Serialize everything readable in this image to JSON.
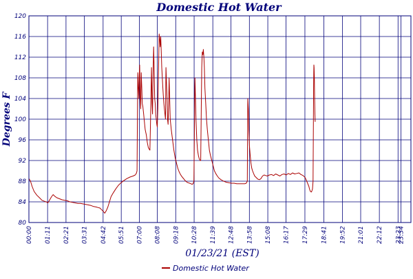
{
  "chart_data": {
    "type": "line",
    "title": "Domestic Hot Water",
    "xlabel": "01/23/21 (EST)",
    "ylabel": "Degrees F",
    "ylim": [
      80,
      120
    ],
    "yticks": [
      80,
      84,
      88,
      92,
      96,
      100,
      104,
      108,
      112,
      116,
      120
    ],
    "xlim": [
      0,
      1452
    ],
    "xticks": [
      {
        "label": "00:00",
        "minute": 0
      },
      {
        "label": "01:11",
        "minute": 71
      },
      {
        "label": "02:21",
        "minute": 141
      },
      {
        "label": "03:31",
        "minute": 211
      },
      {
        "label": "04:42",
        "minute": 282
      },
      {
        "label": "05:51",
        "minute": 351
      },
      {
        "label": "07:00",
        "minute": 420
      },
      {
        "label": "08:08",
        "minute": 488
      },
      {
        "label": "09:18",
        "minute": 558
      },
      {
        "label": "10:28",
        "minute": 628
      },
      {
        "label": "11:39",
        "minute": 699
      },
      {
        "label": "12:48",
        "minute": 768
      },
      {
        "label": "13:58",
        "minute": 838
      },
      {
        "label": "15:08",
        "minute": 908
      },
      {
        "label": "16:17",
        "minute": 977
      },
      {
        "label": "17:29",
        "minute": 1049
      },
      {
        "label": "18:41",
        "minute": 1121
      },
      {
        "label": "19:52",
        "minute": 1192
      },
      {
        "label": "21:01",
        "minute": 1261
      },
      {
        "label": "22:12",
        "minute": 1332
      },
      {
        "label": "23:23",
        "minute": 1403
      },
      {
        "label": "23:34",
        "minute": 1414
      }
    ],
    "grid": true,
    "legend": "bottom-center",
    "series": [
      {
        "name": "Domestic Hot Water",
        "color": "#aa0000",
        "points": [
          [
            0,
            88.5
          ],
          [
            6,
            88
          ],
          [
            12,
            87
          ],
          [
            20,
            86
          ],
          [
            30,
            85.3
          ],
          [
            40,
            84.8
          ],
          [
            50,
            84.3
          ],
          [
            60,
            84.1
          ],
          [
            66,
            84
          ],
          [
            72,
            83.8
          ],
          [
            78,
            84.3
          ],
          [
            86,
            85
          ],
          [
            92,
            85.4
          ],
          [
            98,
            85.1
          ],
          [
            106,
            84.8
          ],
          [
            116,
            84.6
          ],
          [
            126,
            84.4
          ],
          [
            136,
            84.3
          ],
          [
            146,
            84.2
          ],
          [
            156,
            84
          ],
          [
            166,
            83.9
          ],
          [
            176,
            83.8
          ],
          [
            186,
            83.7
          ],
          [
            196,
            83.7
          ],
          [
            206,
            83.6
          ],
          [
            216,
            83.5
          ],
          [
            226,
            83.4
          ],
          [
            236,
            83.3
          ],
          [
            246,
            83.1
          ],
          [
            256,
            83
          ],
          [
            262,
            82.9
          ],
          [
            270,
            82.8
          ],
          [
            276,
            82.5
          ],
          [
            282,
            82.2
          ],
          [
            288,
            81.8
          ],
          [
            294,
            82.3
          ],
          [
            300,
            83
          ],
          [
            306,
            84
          ],
          [
            312,
            85
          ],
          [
            320,
            85.7
          ],
          [
            330,
            86.5
          ],
          [
            340,
            87.2
          ],
          [
            350,
            87.7
          ],
          [
            360,
            88.1
          ],
          [
            372,
            88.5
          ],
          [
            384,
            88.8
          ],
          [
            396,
            89
          ],
          [
            404,
            89.2
          ],
          [
            408,
            89.5
          ],
          [
            411,
            90
          ],
          [
            413,
            105
          ],
          [
            414,
            109
          ],
          [
            416,
            106
          ],
          [
            418,
            104
          ],
          [
            419,
            108
          ],
          [
            421,
            110.5
          ],
          [
            423,
            104
          ],
          [
            425,
            102
          ],
          [
            427,
            109
          ],
          [
            429,
            106
          ],
          [
            431,
            103
          ],
          [
            433,
            102.5
          ],
          [
            436,
            101
          ],
          [
            438,
            100
          ],
          [
            442,
            98
          ],
          [
            446,
            97
          ],
          [
            450,
            95.5
          ],
          [
            454,
            94.5
          ],
          [
            457,
            94.2
          ],
          [
            460,
            94
          ],
          [
            462,
            99
          ],
          [
            464,
            105
          ],
          [
            466,
            110
          ],
          [
            468,
            103
          ],
          [
            470,
            101
          ],
          [
            472,
            109
          ],
          [
            474,
            114
          ],
          [
            476,
            110
          ],
          [
            478,
            104
          ],
          [
            480,
            103
          ],
          [
            482,
            101
          ],
          [
            484,
            100
          ],
          [
            486,
            99
          ],
          [
            488,
            98.5
          ],
          [
            490,
            102
          ],
          [
            493,
            110
          ],
          [
            495,
            116.5
          ],
          [
            497,
            115.5
          ],
          [
            499,
            114
          ],
          [
            501,
            116
          ],
          [
            503,
            113
          ],
          [
            505,
            110
          ],
          [
            507,
            108
          ],
          [
            509,
            106
          ],
          [
            511,
            104.5
          ],
          [
            513,
            103
          ],
          [
            515,
            102
          ],
          [
            517,
            101
          ],
          [
            519,
            100
          ],
          [
            521,
            110
          ],
          [
            523,
            107
          ],
          [
            525,
            104
          ],
          [
            527,
            100
          ],
          [
            529,
            99
          ],
          [
            531,
            103
          ],
          [
            533,
            108
          ],
          [
            535,
            104
          ],
          [
            537,
            100
          ],
          [
            541,
            98
          ],
          [
            546,
            96
          ],
          [
            551,
            94
          ],
          [
            556,
            92.5
          ],
          [
            561,
            91.5
          ],
          [
            566,
            90.5
          ],
          [
            571,
            89.8
          ],
          [
            576,
            89.3
          ],
          [
            581,
            88.9
          ],
          [
            586,
            88.6
          ],
          [
            591,
            88.3
          ],
          [
            596,
            88
          ],
          [
            601,
            87.8
          ],
          [
            606,
            87.7
          ],
          [
            611,
            87.6
          ],
          [
            616,
            87.5
          ],
          [
            620,
            87.4
          ],
          [
            624,
            87.5
          ],
          [
            627,
            88
          ],
          [
            629,
            97
          ],
          [
            630,
            104
          ],
          [
            631,
            108
          ],
          [
            633,
            104
          ],
          [
            635,
            100
          ],
          [
            638,
            96
          ],
          [
            641,
            94
          ],
          [
            644,
            93
          ],
          [
            647,
            92.4
          ],
          [
            650,
            92
          ],
          [
            653,
            92
          ],
          [
            655,
            102
          ],
          [
            657,
            110
          ],
          [
            659,
            113
          ],
          [
            661,
            112.5
          ],
          [
            663,
            113.5
          ],
          [
            665,
            112
          ],
          [
            667,
            110
          ],
          [
            669,
            106
          ],
          [
            672,
            103
          ],
          [
            675,
            100
          ],
          [
            678,
            98
          ],
          [
            682,
            96
          ],
          [
            686,
            94
          ],
          [
            690,
            93
          ],
          [
            695,
            92
          ],
          [
            700,
            91
          ],
          [
            705,
            90
          ],
          [
            710,
            89.5
          ],
          [
            716,
            89
          ],
          [
            722,
            88.6
          ],
          [
            730,
            88.3
          ],
          [
            740,
            88
          ],
          [
            750,
            87.8
          ],
          [
            760,
            87.7
          ],
          [
            770,
            87.6
          ],
          [
            780,
            87.6
          ],
          [
            790,
            87.5
          ],
          [
            800,
            87.5
          ],
          [
            810,
            87.5
          ],
          [
            820,
            87.5
          ],
          [
            826,
            87.6
          ],
          [
            830,
            88
          ],
          [
            832,
            104
          ],
          [
            834,
            102
          ],
          [
            836,
            98
          ],
          [
            838,
            95
          ],
          [
            841,
            93
          ],
          [
            844,
            91.5
          ],
          [
            847,
            90.5
          ],
          [
            850,
            90
          ],
          [
            854,
            89.5
          ],
          [
            858,
            89
          ],
          [
            862,
            88.8
          ],
          [
            866,
            88.6
          ],
          [
            870,
            88.4
          ],
          [
            876,
            88.3
          ],
          [
            882,
            88.5
          ],
          [
            888,
            89
          ],
          [
            894,
            89.2
          ],
          [
            900,
            89.1
          ],
          [
            906,
            89
          ],
          [
            914,
            89.2
          ],
          [
            922,
            89.3
          ],
          [
            930,
            89.1
          ],
          [
            938,
            89.4
          ],
          [
            946,
            89.2
          ],
          [
            954,
            89
          ],
          [
            962,
            89.3
          ],
          [
            970,
            89.4
          ],
          [
            978,
            89.2
          ],
          [
            986,
            89.5
          ],
          [
            994,
            89.3
          ],
          [
            1002,
            89.6
          ],
          [
            1010,
            89.4
          ],
          [
            1018,
            89.5
          ],
          [
            1026,
            89.6
          ],
          [
            1034,
            89.3
          ],
          [
            1042,
            89.1
          ],
          [
            1050,
            88.7
          ],
          [
            1056,
            88
          ],
          [
            1060,
            87.5
          ],
          [
            1064,
            87
          ],
          [
            1067,
            86.4
          ],
          [
            1070,
            86
          ],
          [
            1074,
            85.9
          ],
          [
            1076,
            86.2
          ],
          [
            1078,
            86.5
          ],
          [
            1080,
            88
          ],
          [
            1081,
            97
          ],
          [
            1082,
            106
          ],
          [
            1083,
            110.5
          ],
          [
            1084,
            110
          ],
          [
            1085,
            108
          ],
          [
            1086,
            104
          ],
          [
            1087,
            101
          ],
          [
            1088,
            99.5
          ]
        ]
      }
    ]
  }
}
